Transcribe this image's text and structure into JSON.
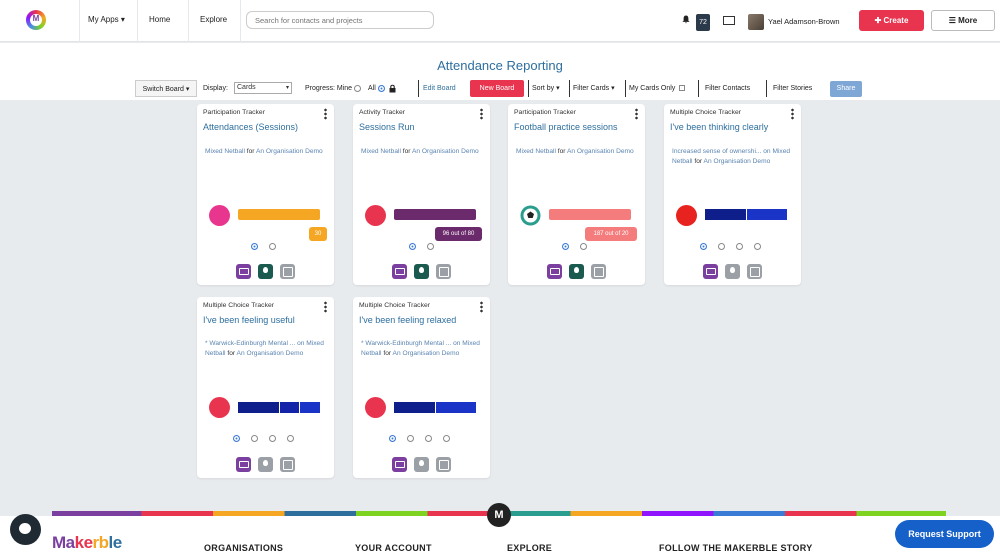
{
  "nav": {
    "my_apps": "My Apps ▾",
    "home": "Home",
    "explore": "Explore",
    "search_placeholder": "Search for contacts and projects",
    "notifications_count": "72",
    "user_name": "Yael Adamson-Brown",
    "create_label": "✚ Create",
    "more_label": "☰ More"
  },
  "page": {
    "title": "Attendance Reporting"
  },
  "toolbar": {
    "switch_board": "Switch Board ▾",
    "display_label": "Display:",
    "display_value": "Cards",
    "progress_label": "Progress: Mine",
    "all_label": "All",
    "edit_board": "Edit Board",
    "new_board": "New Board",
    "sort_by": "Sort by ▾",
    "filter_cards": "Filter Cards ▾",
    "my_cards_only": "My Cards Only",
    "filter_contacts": "Filter Contacts",
    "filter_stories": "Filter Stories",
    "share": "Share"
  },
  "cards": [
    {
      "type": "Participation Tracker",
      "title": "Attendances (Sessions)",
      "project": "Mixed Netball",
      "for_word": "for",
      "org": "An Organisation Demo",
      "tooltip": "30",
      "accent": "#f5a623",
      "ball_color": "#e8368f"
    },
    {
      "type": "Activity Tracker",
      "title": "Sessions Run",
      "project": "Mixed Netball",
      "for_word": "for",
      "org": "An Organisation Demo",
      "tooltip": "96 out of 80",
      "accent": "#6b2a6b",
      "ball_color": "#e8344e"
    },
    {
      "type": "Participation Tracker",
      "title": "Football practice sessions",
      "project": "Mixed Netball",
      "for_word": "for",
      "org": "An Organisation Demo",
      "tooltip": "187 out of 20",
      "accent": "#f47c7c",
      "ball_icon": "football-icon"
    },
    {
      "type": "Multiple Choice Tracker",
      "title": "I've been thinking clearly",
      "question": "Increased sense of ownershi... on",
      "project": "Mixed Netball",
      "for_word": "for",
      "org": "An Organisation Demo",
      "accent": "#1424a8",
      "ball_color": "#e8221e"
    },
    {
      "type": "Multiple Choice Tracker",
      "title": "I've been feeling useful",
      "question": "* Warwick-Edinburgh Mental ... on",
      "project": "Mixed Netball",
      "for_word": "for",
      "org": "An Organisation Demo",
      "accent": "#1424a8",
      "ball_color": "#e8344e"
    },
    {
      "type": "Multiple Choice Tracker",
      "title": "I've been feeling relaxed",
      "question": "* Warwick-Edinburgh Mental ... on",
      "project": "Mixed Netball",
      "for_word": "for",
      "org": "An Organisation Demo",
      "accent": "#1424a8",
      "ball_color": "#e8344e"
    }
  ],
  "footer": {
    "brand": "Makerble",
    "organisations": "ORGANISATIONS",
    "your_account": "YOUR ACCOUNT",
    "explore": "EXPLORE",
    "follow": "FOLLOW THE MAKERBLE STORY",
    "request_support": "Request Support",
    "m_badge": "M"
  }
}
